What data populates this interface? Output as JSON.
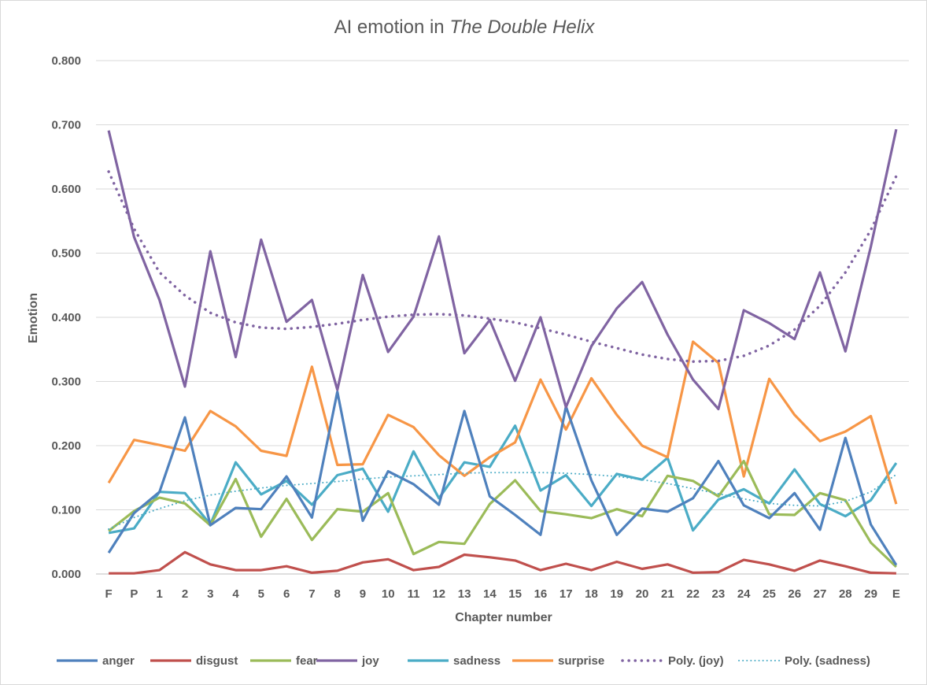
{
  "chart_data": {
    "type": "line",
    "title": "AI emotion in",
    "title_italic": "The Double Helix",
    "xlabel": "Chapter number",
    "ylabel": "Emotion",
    "ylim": [
      0,
      0.8
    ],
    "yticks": [
      "0.000",
      "0.100",
      "0.200",
      "0.300",
      "0.400",
      "0.500",
      "0.600",
      "0.700",
      "0.800"
    ],
    "grid": true,
    "legend_position": "bottom",
    "categories": [
      "F",
      "P",
      "1",
      "2",
      "3",
      "4",
      "5",
      "6",
      "7",
      "8",
      "9",
      "10",
      "11",
      "12",
      "13",
      "14",
      "15",
      "16",
      "17",
      "18",
      "19",
      "20",
      "21",
      "22",
      "23",
      "24",
      "25",
      "26",
      "27",
      "28",
      "29",
      "E"
    ],
    "series": [
      {
        "name": "anger",
        "color": "#4f81bd",
        "style": "solid",
        "values": [
          0.033,
          0.095,
          0.128,
          0.244,
          0.076,
          0.103,
          0.101,
          0.152,
          0.088,
          0.284,
          0.083,
          0.16,
          0.14,
          0.108,
          0.254,
          0.121,
          0.092,
          0.061,
          0.261,
          0.146,
          0.061,
          0.102,
          0.097,
          0.118,
          0.176,
          0.107,
          0.087,
          0.126,
          0.069,
          0.212,
          0.077,
          0.014
        ]
      },
      {
        "name": "disgust",
        "color": "#c0504d",
        "style": "solid",
        "values": [
          0.001,
          0.001,
          0.006,
          0.034,
          0.015,
          0.006,
          0.006,
          0.012,
          0.002,
          0.005,
          0.018,
          0.023,
          0.006,
          0.011,
          0.03,
          0.026,
          0.021,
          0.006,
          0.016,
          0.006,
          0.019,
          0.008,
          0.015,
          0.002,
          0.003,
          0.022,
          0.015,
          0.005,
          0.021,
          0.012,
          0.002,
          0.001
        ]
      },
      {
        "name": "fear",
        "color": "#9bbb59",
        "style": "solid",
        "values": [
          0.067,
          0.098,
          0.119,
          0.11,
          0.076,
          0.148,
          0.058,
          0.117,
          0.053,
          0.101,
          0.097,
          0.126,
          0.031,
          0.05,
          0.047,
          0.109,
          0.146,
          0.098,
          0.093,
          0.087,
          0.101,
          0.09,
          0.153,
          0.145,
          0.121,
          0.176,
          0.093,
          0.092,
          0.126,
          0.115,
          0.049,
          0.011
        ]
      },
      {
        "name": "joy",
        "color": "#8064a2",
        "style": "solid",
        "values": [
          0.691,
          0.525,
          0.427,
          0.292,
          0.503,
          0.338,
          0.521,
          0.393,
          0.427,
          0.287,
          0.466,
          0.346,
          0.401,
          0.526,
          0.344,
          0.396,
          0.301,
          0.4,
          0.26,
          0.355,
          0.414,
          0.455,
          0.373,
          0.303,
          0.257,
          0.411,
          0.391,
          0.366,
          0.47,
          0.347,
          0.51,
          0.693
        ]
      },
      {
        "name": "sadness",
        "color": "#4bacc6",
        "style": "solid",
        "values": [
          0.064,
          0.071,
          0.128,
          0.126,
          0.077,
          0.174,
          0.124,
          0.145,
          0.108,
          0.154,
          0.164,
          0.097,
          0.191,
          0.118,
          0.174,
          0.167,
          0.231,
          0.13,
          0.154,
          0.106,
          0.156,
          0.147,
          0.181,
          0.068,
          0.116,
          0.132,
          0.11,
          0.163,
          0.109,
          0.09,
          0.115,
          0.173
        ]
      },
      {
        "name": "surprise",
        "color": "#f79646",
        "style": "solid",
        "values": [
          0.142,
          0.209,
          0.201,
          0.192,
          0.254,
          0.23,
          0.192,
          0.184,
          0.323,
          0.17,
          0.171,
          0.248,
          0.229,
          0.185,
          0.153,
          0.182,
          0.205,
          0.303,
          0.225,
          0.305,
          0.248,
          0.2,
          0.182,
          0.362,
          0.329,
          0.152,
          0.304,
          0.248,
          0.207,
          0.222,
          0.246,
          0.109
        ]
      },
      {
        "name": "Poly. (joy)",
        "color": "#8064a2",
        "style": "dot-thick",
        "values": [
          0.627,
          0.538,
          0.47,
          0.434,
          0.407,
          0.392,
          0.384,
          0.382,
          0.385,
          0.39,
          0.396,
          0.401,
          0.404,
          0.405,
          0.403,
          0.398,
          0.392,
          0.383,
          0.373,
          0.362,
          0.352,
          0.342,
          0.335,
          0.331,
          0.332,
          0.34,
          0.356,
          0.381,
          0.418,
          0.47,
          0.536,
          0.62
        ]
      },
      {
        "name": "Poly. (sadness)",
        "color": "#4bacc6",
        "style": "dot-thin",
        "values": [
          0.07,
          0.088,
          0.102,
          0.114,
          0.123,
          0.129,
          0.134,
          0.138,
          0.141,
          0.144,
          0.148,
          0.151,
          0.153,
          0.155,
          0.157,
          0.158,
          0.158,
          0.158,
          0.157,
          0.155,
          0.152,
          0.147,
          0.141,
          0.133,
          0.125,
          0.117,
          0.11,
          0.107,
          0.106,
          0.113,
          0.128,
          0.155
        ]
      }
    ]
  }
}
